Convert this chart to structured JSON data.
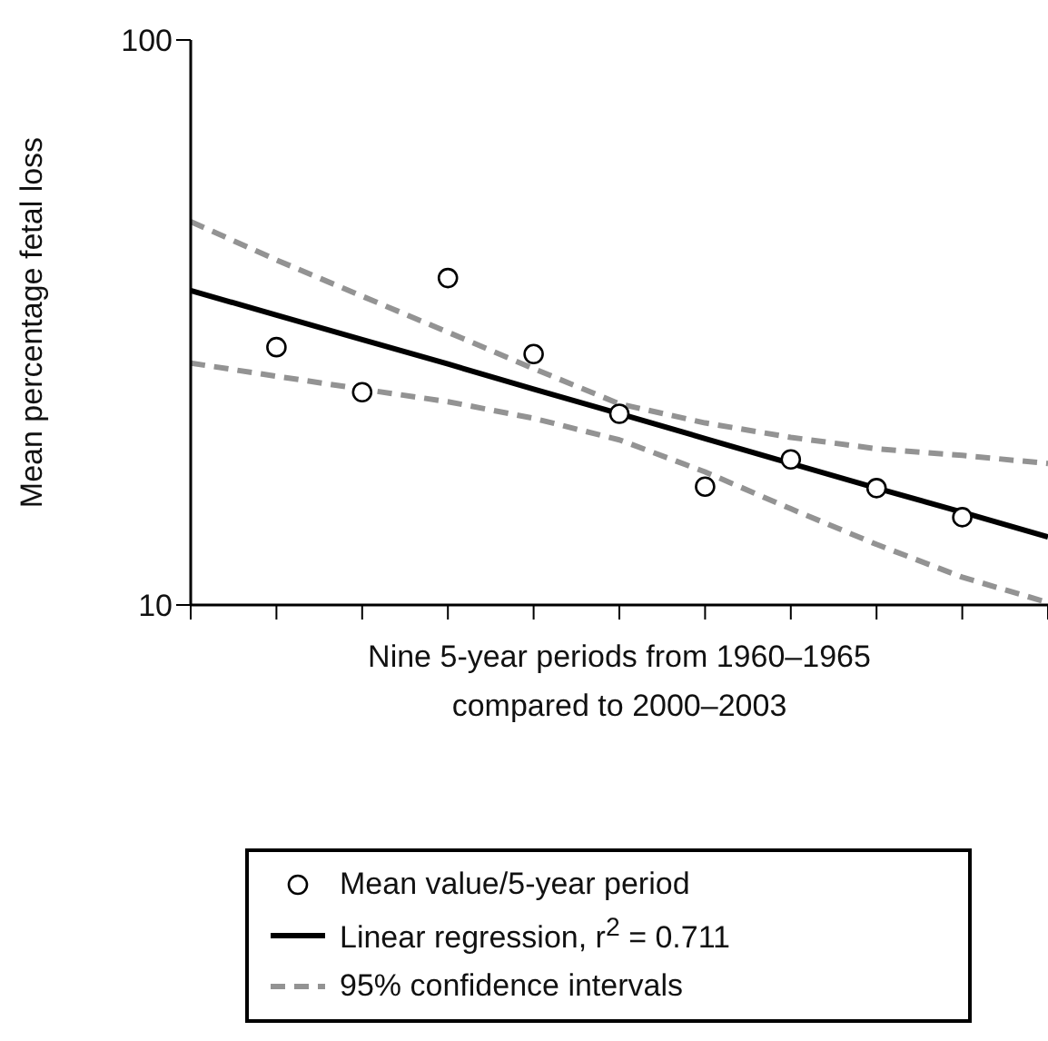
{
  "chart_data": {
    "type": "line",
    "xlabel": "Nine 5-year periods from 1960–1965\ncompared to 2000–2003",
    "ylabel": "Mean percentage fetal loss",
    "log": "y",
    "categories": [
      null,
      null,
      null,
      null,
      null,
      null,
      null,
      null,
      null,
      null,
      null
    ],
    "ylim": [
      10,
      100
    ],
    "yticks": [
      10,
      100
    ],
    "grid": false,
    "legend": "bottom",
    "series": [
      {
        "name": "Mean value/5-year period",
        "type": "scatter",
        "marker": "circle",
        "color": "#000000",
        "values": [
          null,
          28.6,
          23.8,
          37.9,
          27.8,
          21.8,
          16.2,
          18.1,
          16.1,
          14.3,
          null
        ]
      },
      {
        "name": "Linear regression, r$^{2}$ = 0.711",
        "color": "#000000",
        "line_style": "solid",
        "values": [
          36.0,
          32.6,
          29.5,
          26.7,
          24.1,
          21.8,
          19.7,
          17.8,
          16.1,
          14.6,
          13.2
        ]
      },
      {
        "name": "95% confidence intervals",
        "color": "#939393",
        "line_style": "dashed",
        "values": [
          47.7,
          40.8,
          35.2,
          30.4,
          26.2,
          22.7,
          21.0,
          19.8,
          18.9,
          18.4,
          17.8
        ]
      },
      {
        "color": "#939393",
        "line_style": "dashed",
        "values": [
          26.8,
          25.4,
          24.1,
          22.9,
          21.4,
          19.6,
          17.2,
          14.8,
          12.8,
          11.2,
          10.1
        ]
      }
    ]
  }
}
